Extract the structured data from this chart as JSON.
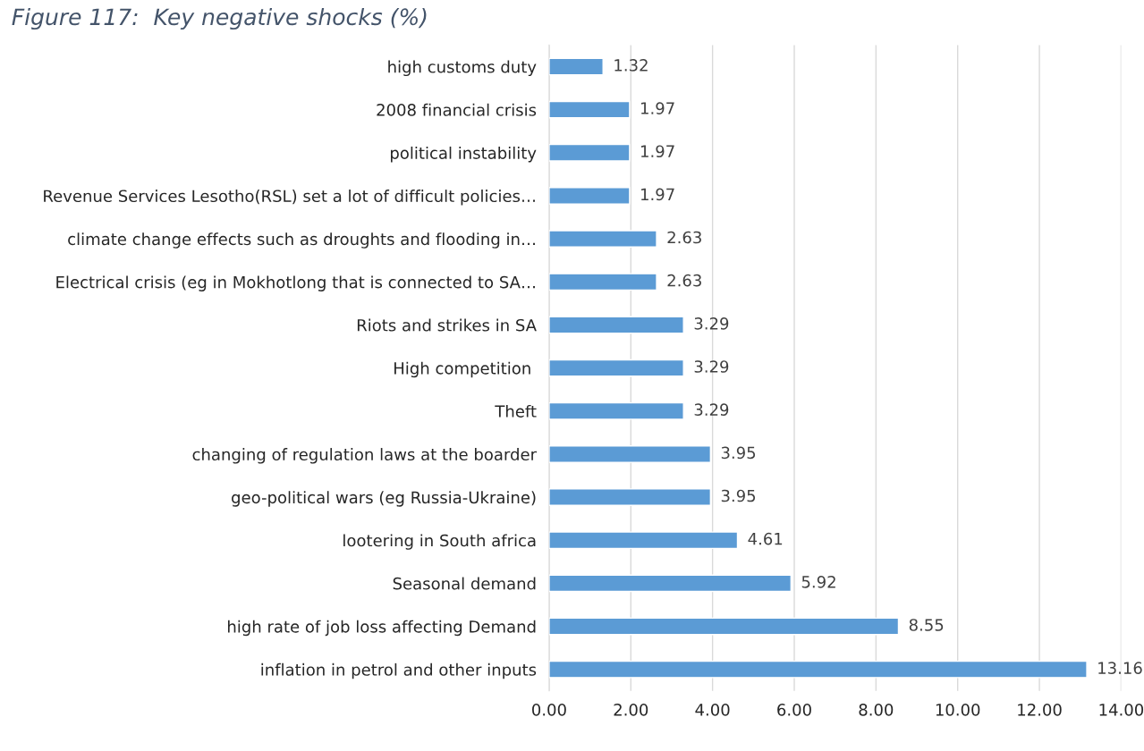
{
  "chart_data": {
    "type": "bar",
    "orientation": "horizontal",
    "title": "Figure 117:  Key negative shocks (%)",
    "categories": [
      "high customs duty",
      "2008 financial crisis",
      "political instability",
      "Revenue Services Lesotho(RSL) set a lot of difficult policies…",
      "climate change effects such as droughts and flooding in…",
      "Electrical crisis (eg in Mokhotlong that is connected to SA…",
      "Riots and strikes in SA",
      "High competition ",
      "Theft",
      "changing of regulation laws at the boarder",
      "geo-political wars (eg Russia-Ukraine)",
      "lootering in South africa",
      "Seasonal demand",
      "high rate of job loss affecting Demand",
      "inflation in petrol and other inputs"
    ],
    "values": [
      1.32,
      1.97,
      1.97,
      1.97,
      2.63,
      2.63,
      3.29,
      3.29,
      3.29,
      3.95,
      3.95,
      4.61,
      5.92,
      8.55,
      13.16
    ],
    "color": "#5b9bd5",
    "data_labels": true,
    "grid": "x",
    "xlim": [
      0,
      14
    ],
    "xticks": [
      {
        "value": 0,
        "label": "0.00"
      },
      {
        "value": 2,
        "label": "2.00"
      },
      {
        "value": 4,
        "label": "4.00"
      },
      {
        "value": 6,
        "label": "6.00"
      },
      {
        "value": 8,
        "label": "8.00"
      },
      {
        "value": 10,
        "label": "10.00"
      },
      {
        "value": 12,
        "label": "12.00"
      },
      {
        "value": 14,
        "label": "14.00"
      }
    ]
  }
}
